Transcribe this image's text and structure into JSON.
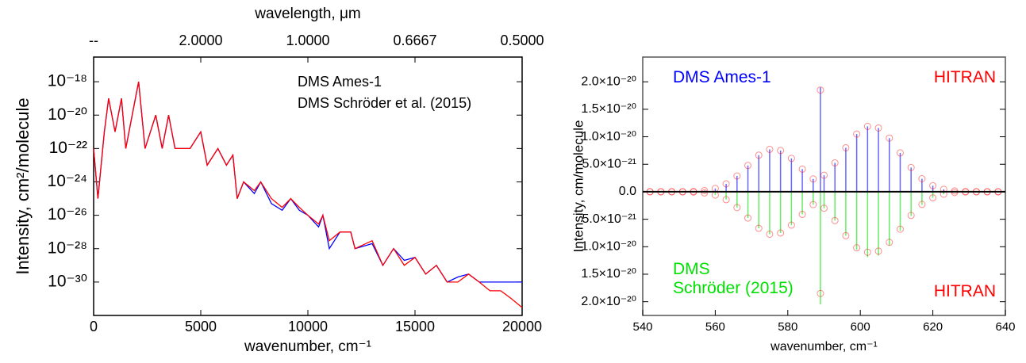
{
  "chart_data": [
    {
      "type": "line",
      "xlabel": "wavenumber, cm⁻¹",
      "ylabel": "Intensity, cm²/molecule",
      "x2label": "wavelength, μm",
      "log_y": true,
      "xlim": [
        0,
        20000
      ],
      "xticks": [
        0,
        5000,
        10000,
        15000,
        20000
      ],
      "x2ticks": [
        {
          "value": 0,
          "label": "--"
        },
        {
          "value": 5000,
          "label": "2.0000"
        },
        {
          "value": 10000,
          "label": "1.0000"
        },
        {
          "value": 15000,
          "label": "0.6667"
        },
        {
          "value": 20000,
          "label": "0.5000"
        }
      ],
      "ylim": [
        1e-32,
        3e-17
      ],
      "yticks": [
        {
          "value": 1e-18,
          "label": "10⁻¹⁸"
        },
        {
          "value": 1e-20,
          "label": "10⁻²⁰"
        },
        {
          "value": 1e-22,
          "label": "10⁻²²"
        },
        {
          "value": 1e-24,
          "label": "10⁻²⁴"
        },
        {
          "value": 1e-26,
          "label": "10⁻²⁶"
        },
        {
          "value": 1e-28,
          "label": "10⁻²⁸"
        },
        {
          "value": 1e-30,
          "label": "10⁻³⁰"
        }
      ],
      "x": [
        0,
        200,
        500,
        700,
        1000,
        1300,
        1500,
        1800,
        2100,
        2400,
        2900,
        3200,
        3500,
        3800,
        4200,
        4500,
        5000,
        5300,
        5800,
        6200,
        6500,
        6700,
        7000,
        7500,
        7800,
        8300,
        8800,
        9200,
        9600,
        10000,
        10500,
        10700,
        11000,
        11500,
        12000,
        12200,
        13000,
        13500,
        14000,
        14500,
        15000,
        15500,
        16000,
        16500,
        17000,
        17500,
        18000,
        18500,
        19000,
        19500,
        20000
      ],
      "series": [
        {
          "name": "DMS Ames-1",
          "color": "#0000ff",
          "values": [
            1e-22,
            1e-25,
            1e-21,
            1e-19,
            1e-21,
            1e-19,
            1e-22,
            1e-20,
            1e-18,
            1e-22,
            1e-20,
            1e-22,
            1e-20,
            1e-22,
            1e-22,
            1e-22,
            1e-21,
            1e-23,
            1e-22,
            1e-23,
            4e-23,
            1e-25,
            1e-24,
            2e-25,
            1e-24,
            5e-26,
            2e-26,
            1e-25,
            2e-26,
            1e-26,
            2e-27,
            1e-26,
            1e-28,
            1e-27,
            1e-27,
            1e-28,
            2e-28,
            1e-29,
            1e-28,
            2e-29,
            3e-29,
            3e-30,
            1e-29,
            1e-30,
            2e-30,
            3e-30,
            1e-30,
            1e-30,
            1e-30,
            1e-30,
            1e-30
          ]
        },
        {
          "name": "DMS Schröder et al. (2015)",
          "color": "#ff0000",
          "values": [
            1e-22,
            1e-25,
            1e-21,
            1e-19,
            1e-21,
            1e-19,
            1e-22,
            1e-20,
            1e-18,
            1e-22,
            1e-20,
            1e-22,
            1e-20,
            1e-22,
            1e-22,
            1e-22,
            1e-21,
            1e-23,
            1e-22,
            1e-23,
            4e-23,
            1e-25,
            1e-24,
            3e-25,
            1e-24,
            1e-25,
            3e-26,
            1e-25,
            3e-26,
            1e-26,
            3e-27,
            1e-26,
            3e-28,
            1e-27,
            1e-27,
            1e-28,
            3e-28,
            1e-29,
            1e-28,
            1e-29,
            3e-29,
            3e-30,
            1e-29,
            1e-30,
            1e-30,
            3e-30,
            1e-30,
            3e-31,
            3e-31,
            1e-31,
            3e-32
          ]
        }
      ]
    },
    {
      "type": "stick",
      "xlabel": "wavenumber, cm⁻¹",
      "ylabel": "Intensity, cm/molecule",
      "xlim": [
        540,
        640
      ],
      "xticks": [
        540,
        560,
        580,
        600,
        620,
        640
      ],
      "ylim": [
        -2.25e-20,
        2.45e-20
      ],
      "yticks": [
        {
          "value": 2e-20,
          "label": "2.0×10⁻²⁰"
        },
        {
          "value": 1.5e-20,
          "label": "1.5×10⁻²⁰"
        },
        {
          "value": 1e-20,
          "label": "1.0×10⁻²⁰"
        },
        {
          "value": 5e-21,
          "label": "5.0×10⁻²¹"
        },
        {
          "value": 0,
          "label": "0.0"
        },
        {
          "value": -5e-21,
          "label": "5.0×10⁻²¹"
        },
        {
          "value": -1e-20,
          "label": "1.0×10⁻²⁰"
        },
        {
          "value": -1.5e-20,
          "label": "1.5×10⁻²⁰"
        },
        {
          "value": -2e-20,
          "label": "2.0×10⁻²⁰"
        }
      ],
      "x": [
        542,
        545,
        548,
        551,
        554,
        557,
        560,
        563,
        566,
        569,
        572,
        575,
        578,
        581,
        584,
        587,
        589,
        590,
        593,
        596,
        599,
        602,
        605,
        608,
        611,
        614,
        617,
        620,
        623,
        626,
        629,
        632,
        635,
        638
      ],
      "series": [
        {
          "name": "DMS Ames-1",
          "color": "#0000ff",
          "marker": "stick",
          "values": [
            1e-25,
            1e-24,
            3e-24,
            1.5e-23,
            6e-23,
            2.1e-22,
            6e-22,
            1.44e-21,
            2.87e-21,
            4.78e-21,
            6.65e-21,
            7.72e-21,
            7.5e-21,
            6.07e-21,
            4.11e-21,
            2.33e-21,
            1.9e-20,
            3e-21,
            5.25e-21,
            8e-21,
            1.05e-20,
            1.19e-20,
            1.16e-20,
            9.76e-21,
            7.07e-21,
            4.41e-21,
            2.37e-21,
            1.1e-21,
            4.4e-22,
            1.5e-22,
            4.5e-23,
            1e-23,
            3e-24,
            1e-24
          ]
        },
        {
          "name": "HITRAN",
          "color": "#ff0000",
          "marker": "circle",
          "values": [
            1e-25,
            1e-24,
            3e-24,
            1.5e-23,
            6e-23,
            2.1e-22,
            6e-22,
            1.44e-21,
            2.87e-21,
            4.78e-21,
            6.65e-21,
            7.72e-21,
            7.5e-21,
            6.07e-21,
            4.11e-21,
            2.33e-21,
            1.85e-20,
            3e-21,
            5.25e-21,
            8e-21,
            1.05e-20,
            1.19e-20,
            1.16e-20,
            9.76e-21,
            7.07e-21,
            4.41e-21,
            2.37e-21,
            1.1e-21,
            4.4e-22,
            1.5e-22,
            4.5e-23,
            1e-23,
            3e-24,
            1e-24
          ]
        },
        {
          "name": "DMS\nSchröder (2015)",
          "color": "#00e000",
          "marker": "stick",
          "values": [
            -1e-25,
            -1e-24,
            -3e-24,
            -1.5e-23,
            -6e-23,
            -2.1e-22,
            -6e-22,
            -1.44e-21,
            -2.87e-21,
            -4.78e-21,
            -6.65e-21,
            -7.72e-21,
            -7.5e-21,
            -6.07e-21,
            -4.11e-21,
            -2.33e-21,
            -2.05e-20,
            -3e-21,
            -5.25e-21,
            -8e-21,
            -1.05e-20,
            -1.19e-20,
            -1.16e-20,
            -9.76e-21,
            -7.07e-21,
            -4.41e-21,
            -2.37e-21,
            -1.1e-21,
            -4.4e-22,
            -1.5e-22,
            -4.5e-23,
            -1e-23,
            -3e-24,
            -1e-24
          ]
        },
        {
          "name": "HITRAN",
          "color": "#ff0000",
          "marker": "circle",
          "values": [
            -1e-25,
            -1e-24,
            -3e-24,
            -1.5e-23,
            -6e-23,
            -2.1e-22,
            -6e-22,
            -1.44e-21,
            -2.87e-21,
            -4.78e-21,
            -6.65e-21,
            -7.72e-21,
            -7.5e-21,
            -6.07e-21,
            -4.11e-21,
            -2.33e-21,
            -1.85e-20,
            -3e-21,
            -5.25e-21,
            -8e-21,
            -1.02e-20,
            -1.1e-20,
            -1.08e-20,
            -9.2e-21,
            -6.8e-21,
            -4.3e-21,
            -2.3e-21,
            -1.1e-21,
            -4.4e-22,
            -1.5e-22,
            -4.5e-23,
            -1e-23,
            -3e-24,
            -1e-24
          ]
        }
      ]
    }
  ]
}
